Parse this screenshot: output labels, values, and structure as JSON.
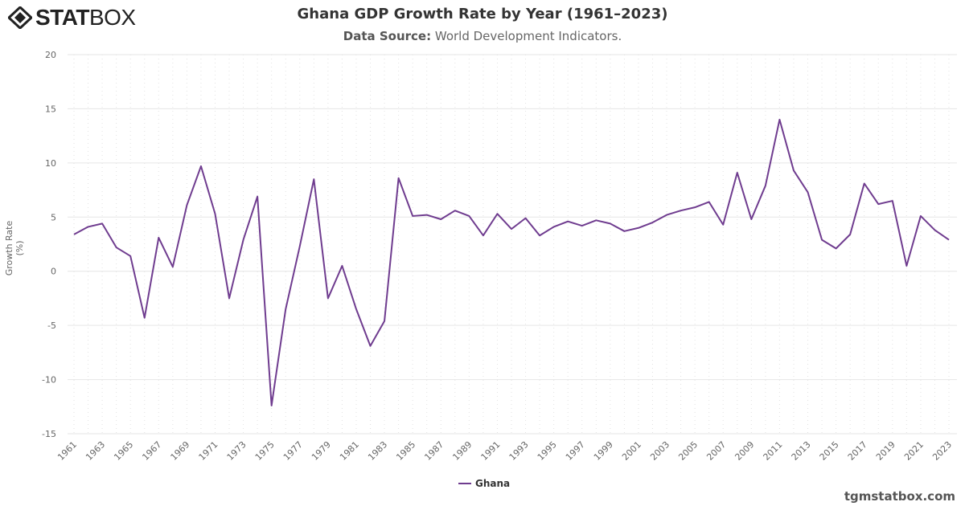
{
  "brand": {
    "logo_text_bold": "STAT",
    "logo_text_light": "BOX"
  },
  "header": {
    "title": "Ghana GDP Growth Rate by Year (1961–2023)",
    "subtitle_label": "Data Source:",
    "subtitle_value": " World Development Indicators."
  },
  "footer": {
    "credit": "tgmstatbox.com"
  },
  "chart_data": {
    "type": "line",
    "title": "Ghana GDP Growth Rate by Year (1961–2023)",
    "xlabel": "",
    "ylabel": "Growth Rate (%)",
    "ylim": [
      -15,
      20
    ],
    "yticks": [
      20,
      15,
      10,
      5,
      0,
      -5,
      -10,
      -15
    ],
    "grid": true,
    "legend_placement": "bottom-center",
    "x": [
      1961,
      1962,
      1963,
      1964,
      1965,
      1966,
      1967,
      1968,
      1969,
      1970,
      1971,
      1972,
      1973,
      1974,
      1975,
      1976,
      1977,
      1978,
      1979,
      1980,
      1981,
      1982,
      1983,
      1984,
      1985,
      1986,
      1987,
      1988,
      1989,
      1990,
      1991,
      1992,
      1993,
      1994,
      1995,
      1996,
      1997,
      1998,
      1999,
      2000,
      2001,
      2002,
      2003,
      2004,
      2005,
      2006,
      2007,
      2008,
      2009,
      2010,
      2011,
      2012,
      2013,
      2014,
      2015,
      2016,
      2017,
      2018,
      2019,
      2020,
      2021,
      2022,
      2023
    ],
    "series": [
      {
        "name": "Ghana",
        "color": "#6f3c8f",
        "values": [
          3.4,
          4.1,
          4.4,
          2.2,
          1.4,
          -4.3,
          3.1,
          0.4,
          6.1,
          9.7,
          5.3,
          -2.5,
          2.9,
          6.9,
          -12.4,
          -3.5,
          2.3,
          8.5,
          -2.5,
          0.5,
          -3.5,
          -6.9,
          -4.6,
          8.6,
          5.1,
          5.2,
          4.8,
          5.6,
          5.1,
          3.3,
          5.3,
          3.9,
          4.9,
          3.3,
          4.1,
          4.6,
          4.2,
          4.7,
          4.4,
          3.7,
          4.0,
          4.5,
          5.2,
          5.6,
          5.9,
          6.4,
          4.3,
          9.1,
          4.8,
          7.9,
          14.0,
          9.3,
          7.3,
          2.9,
          2.1,
          3.4,
          8.1,
          6.2,
          6.5,
          0.5,
          5.1,
          3.8,
          2.9
        ]
      }
    ]
  }
}
